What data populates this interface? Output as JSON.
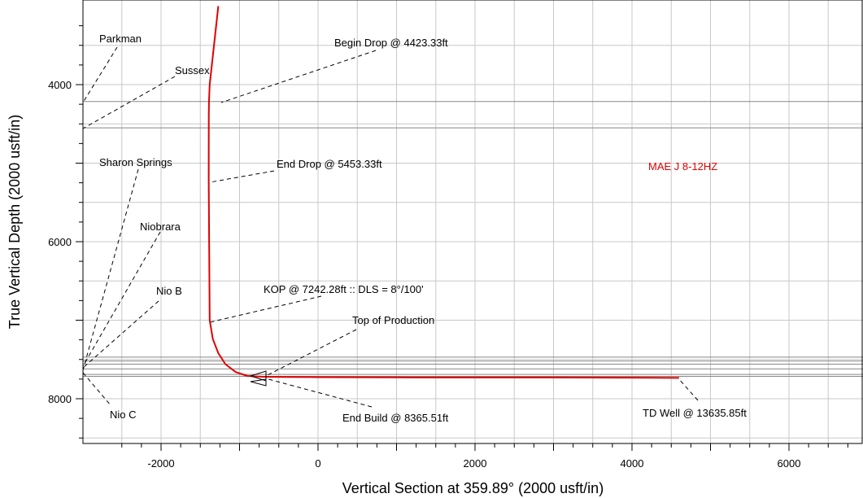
{
  "chart_data": {
    "type": "line",
    "xlabel": "Vertical Section at 359.89° (2000 usft/in)",
    "ylabel": "True Vertical Depth (2000 usft/in)",
    "xlim": [
      -3000,
      7000
    ],
    "ylim": [
      8500,
      3000
    ],
    "y_inverted": true,
    "grid": true,
    "x_ticks": [
      -2000,
      0,
      2000,
      4000,
      6000
    ],
    "y_ticks": [
      4000,
      6000,
      8000
    ],
    "series": [
      {
        "name": "MAE J 8-12HZ",
        "color": "#e00000",
        "x": [
          -1270,
          -1380,
          -1390,
          -1392,
          -1393,
          -1380,
          -1340,
          -1270,
          -1180,
          -1050,
          -900,
          -700,
          -400,
          0,
          1000,
          2000,
          3000,
          4000,
          4600
        ],
        "y": [
          3000,
          4000,
          4230,
          4400,
          5200,
          7000,
          7240,
          7420,
          7560,
          7660,
          7710,
          7720,
          7722,
          7725,
          7728,
          7730,
          7730,
          7732,
          7735
        ]
      }
    ],
    "formations": [
      {
        "name": "Parkman",
        "tvd": 4215
      },
      {
        "name": "Sussex",
        "tvd": 4550
      },
      {
        "name": "Sharon Springs",
        "tvd": 7470
      },
      {
        "name": "Niobrara",
        "tvd": 7520
      },
      {
        "name": "Nio B",
        "tvd": 7560
      },
      {
        "name": "Nio C",
        "tvd": 7620
      }
    ],
    "target_lines_tvd": [
      7690,
      7715
    ],
    "annotations": [
      "Begin Drop @ 4423.33ft",
      "End Drop @ 5453.33ft",
      "KOP @ 7242.28ft :: DLS = 8°/100'",
      "Top of Production",
      "End Build @ 8365.51ft",
      "TD Well @ 13635.85ft"
    ]
  }
}
